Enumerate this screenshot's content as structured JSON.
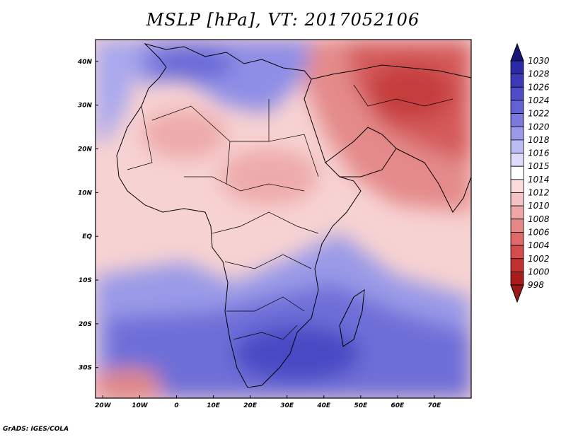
{
  "title": "MSLP [hPa], VT: 2017052106",
  "footer": "GrADS: IGES/COLA",
  "map": {
    "lon_range": [
      -22,
      80
    ],
    "lat_range": [
      -37,
      45
    ],
    "x_ticks": [
      {
        "lon": -20,
        "label": "20W"
      },
      {
        "lon": -10,
        "label": "10W"
      },
      {
        "lon": 0,
        "label": "0"
      },
      {
        "lon": 10,
        "label": "10E"
      },
      {
        "lon": 20,
        "label": "20E"
      },
      {
        "lon": 30,
        "label": "30E"
      },
      {
        "lon": 40,
        "label": "40E"
      },
      {
        "lon": 50,
        "label": "50E"
      },
      {
        "lon": 60,
        "label": "60E"
      },
      {
        "lon": 70,
        "label": "70E"
      }
    ],
    "y_ticks": [
      {
        "lat": 40,
        "label": "40N"
      },
      {
        "lat": 30,
        "label": "30N"
      },
      {
        "lat": 20,
        "label": "20N"
      },
      {
        "lat": 10,
        "label": "10N"
      },
      {
        "lat": 0,
        "label": "EQ"
      },
      {
        "lat": -10,
        "label": "10S"
      },
      {
        "lat": -20,
        "label": "20S"
      },
      {
        "lat": -30,
        "label": "30S"
      }
    ]
  },
  "colorbar": {
    "levels": [
      {
        "label": "1030",
        "color": "#1c1c8c"
      },
      {
        "label": "1028",
        "color": "#2a2aa6"
      },
      {
        "label": "1026",
        "color": "#3a3ab8"
      },
      {
        "label": "1024",
        "color": "#4d4dc8"
      },
      {
        "label": "1022",
        "color": "#6262d4"
      },
      {
        "label": "1020",
        "color": "#7a7ade"
      },
      {
        "label": "1018",
        "color": "#9a9ae8"
      },
      {
        "label": "1016",
        "color": "#bcbcf2"
      },
      {
        "label": "1015",
        "color": "#dcdcfa"
      },
      {
        "label": "1014",
        "color": "#ffffff"
      },
      {
        "label": "1012",
        "color": "#fadcdc"
      },
      {
        "label": "1010",
        "color": "#f4c2c2"
      },
      {
        "label": "1008",
        "color": "#eea6a6"
      },
      {
        "label": "1006",
        "color": "#e68888"
      },
      {
        "label": "1004",
        "color": "#de6a6a"
      },
      {
        "label": "1002",
        "color": "#d44c4c"
      },
      {
        "label": "1000",
        "color": "#c23030"
      },
      {
        "label": "998",
        "color": "#a81c1c"
      }
    ],
    "top_arrow_color": "#16167a",
    "bottom_arrow_color": "#9a1818"
  }
}
